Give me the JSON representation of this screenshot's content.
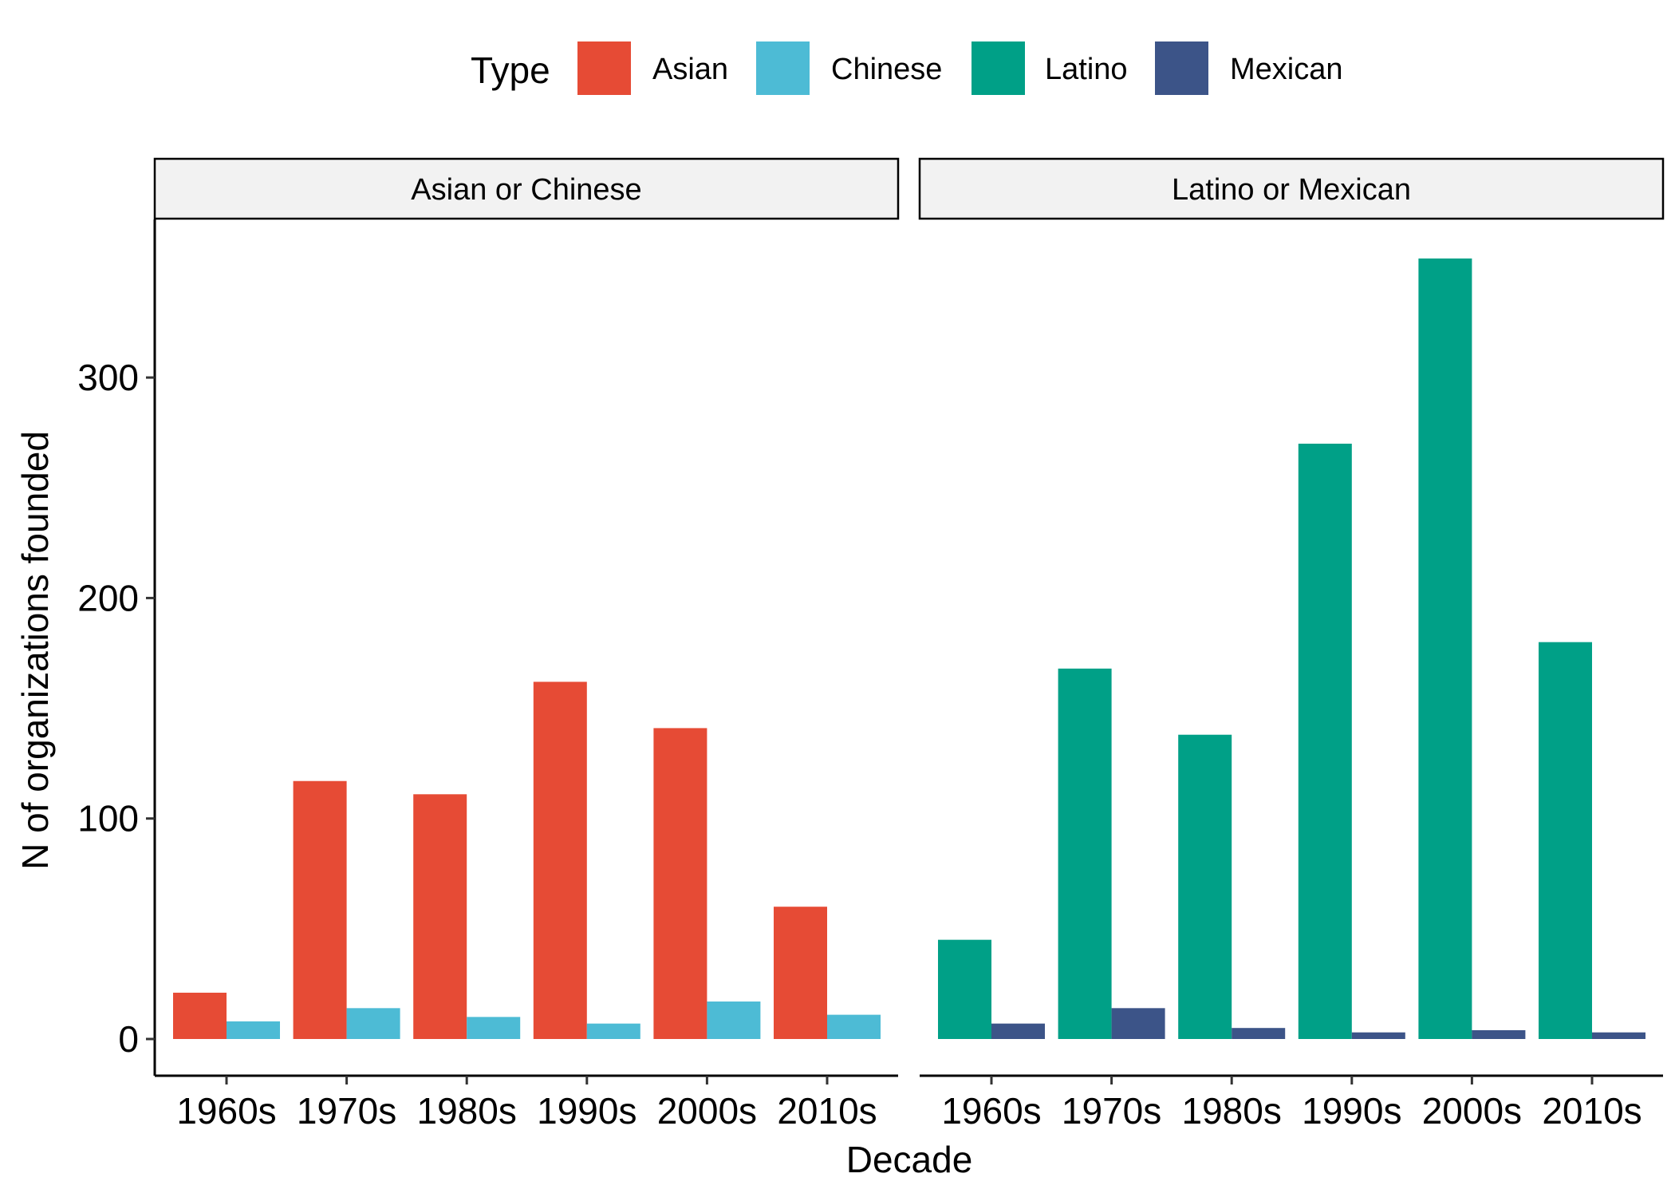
{
  "chart_data": {
    "type": "bar",
    "xlabel": "Decade",
    "ylabel": "N of organizations founded",
    "ylim": [
      0,
      370
    ],
    "y_ticks": [
      0,
      100,
      200,
      300
    ],
    "grid": false,
    "legend": {
      "title": "Type",
      "position": "top",
      "entries": [
        {
          "name": "Asian",
          "color": "#E64B35"
        },
        {
          "name": "Chinese",
          "color": "#4DBBD5"
        },
        {
          "name": "Latino",
          "color": "#00A087"
        },
        {
          "name": "Mexican",
          "color": "#3C5488"
        }
      ]
    },
    "categories": [
      "1960s",
      "1970s",
      "1980s",
      "1990s",
      "2000s",
      "2010s"
    ],
    "facets": [
      {
        "title": "Asian or Chinese",
        "series": [
          {
            "name": "Asian",
            "color": "#E64B35",
            "values": [
              21,
              117,
              111,
              162,
              141,
              60
            ]
          },
          {
            "name": "Chinese",
            "color": "#4DBBD5",
            "values": [
              8,
              14,
              10,
              7,
              17,
              11
            ]
          }
        ]
      },
      {
        "title": "Latino or Mexican",
        "series": [
          {
            "name": "Latino",
            "color": "#00A087",
            "values": [
              45,
              168,
              138,
              270,
              354,
              180
            ]
          },
          {
            "name": "Mexican",
            "color": "#3C5488",
            "values": [
              7,
              14,
              5,
              3,
              4,
              3
            ]
          }
        ]
      }
    ]
  }
}
